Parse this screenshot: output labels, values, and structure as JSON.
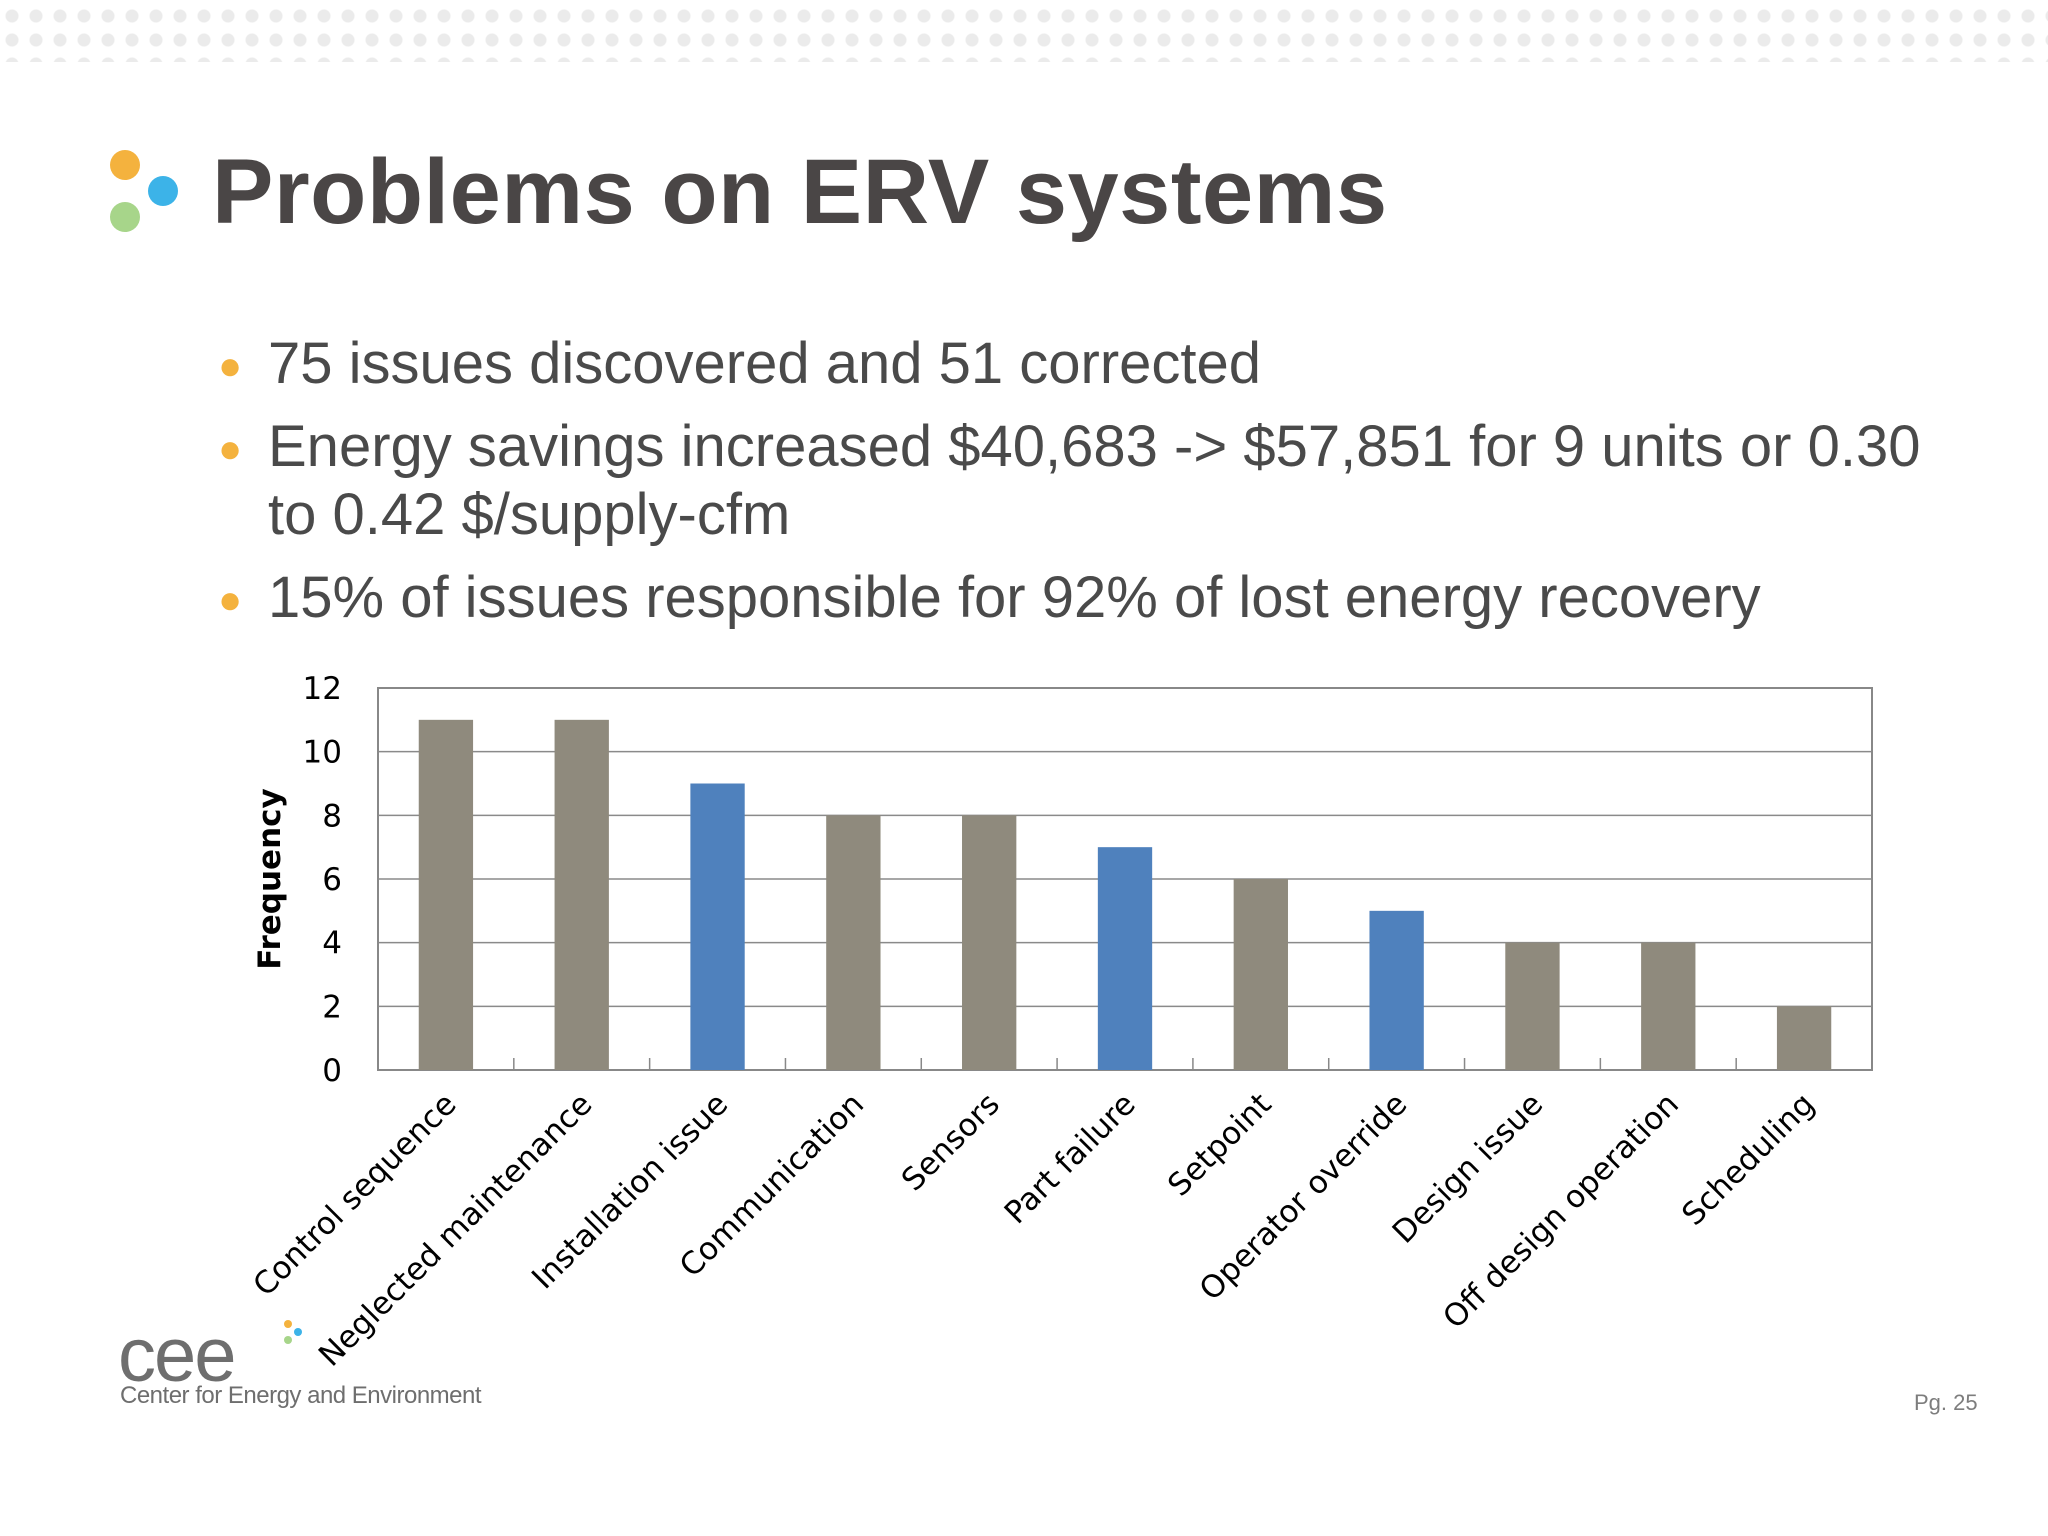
{
  "slide": {
    "title": "Problems on ERV systems",
    "bullets": [
      "75 issues discovered and 51 corrected",
      "Energy savings increased $40,683 -> $57,851 for 9 units or 0.30 to 0.42 $/supply-cfm",
      "15% of issues responsible for 92% of lost energy recovery"
    ],
    "bullet_color": "#f4b23e",
    "title_dot_colors": [
      "#f4b23e",
      "#3cb3e8",
      "#a7d58a"
    ],
    "page_label": "Pg. 25"
  },
  "logo": {
    "wordmark": "cee",
    "subtitle": "Center for Energy and Environment",
    "dot_colors": [
      "#f4b23e",
      "#3cb3e8",
      "#a7d58a"
    ]
  },
  "chart_data": {
    "type": "bar",
    "title": "",
    "xlabel": "",
    "ylabel": "Frequency",
    "ylim": [
      0,
      12
    ],
    "yticks": [
      0,
      2,
      4,
      6,
      8,
      10,
      12
    ],
    "grid": true,
    "categories": [
      "Control sequence",
      "Neglected maintenance",
      "Installation issue",
      "Communication",
      "Sensors",
      "Part failure",
      "Setpoint",
      "Operator override",
      "Design issue",
      "Off design operation",
      "Scheduling"
    ],
    "values": [
      11,
      11,
      9,
      8,
      8,
      7,
      6,
      5,
      4,
      4,
      2
    ],
    "highlighted": [
      false,
      false,
      true,
      false,
      false,
      true,
      false,
      true,
      false,
      false,
      false
    ],
    "colors": {
      "default": "#8f8a7d",
      "highlight": "#4f81bd"
    }
  }
}
